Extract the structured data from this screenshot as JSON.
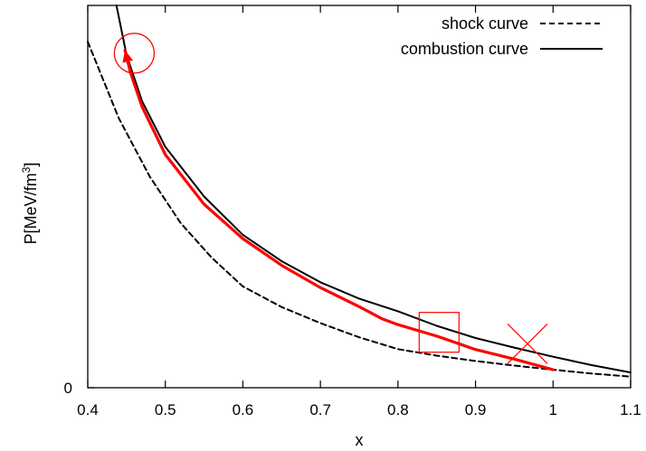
{
  "chart_data": {
    "type": "line",
    "title": "",
    "xlabel": "x",
    "ylabel_main": "P[MeV/fm",
    "ylabel_sup": "3",
    "ylabel_close": "]",
    "xlim": [
      0.4,
      1.1
    ],
    "ylim": [
      0,
      1
    ],
    "x_ticks": [
      "0.4",
      "0.5",
      "0.6",
      "0.7",
      "0.8",
      "0.9",
      "1",
      "1.1"
    ],
    "y_ticks": [
      "0"
    ],
    "grid": false,
    "legend_position": "top-right",
    "series": [
      {
        "name": "shock curve",
        "style": "dashed",
        "color": "#000000",
        "x": [
          0.4,
          0.44,
          0.48,
          0.52,
          0.56,
          0.6,
          0.65,
          0.7,
          0.75,
          0.8,
          0.85,
          0.9,
          0.95,
          1.0,
          1.05,
          1.1
        ],
        "y": [
          0.905,
          0.705,
          0.552,
          0.43,
          0.34,
          0.265,
          0.211,
          0.169,
          0.132,
          0.101,
          0.084,
          0.07,
          0.058,
          0.047,
          0.037,
          0.029
        ]
      },
      {
        "name": "combustion curve",
        "style": "solid",
        "color": "#000000",
        "x": [
          0.437,
          0.45,
          0.47,
          0.5,
          0.55,
          0.6,
          0.65,
          0.7,
          0.75,
          0.8,
          0.85,
          0.9,
          0.95,
          1.0,
          1.05,
          1.1
        ],
        "y": [
          1.0,
          0.87,
          0.75,
          0.63,
          0.5,
          0.4,
          0.331,
          0.276,
          0.233,
          0.2,
          0.162,
          0.13,
          0.105,
          0.081,
          0.059,
          0.04
        ]
      },
      {
        "name": "",
        "style": "solid-thick",
        "color": "#ff0000",
        "x": [
          1.0,
          0.95,
          0.9,
          0.85,
          0.8,
          0.78,
          0.75,
          0.7,
          0.65,
          0.6,
          0.55,
          0.5,
          0.47,
          0.455,
          0.448
        ],
        "y": [
          0.047,
          0.075,
          0.1,
          0.135,
          0.165,
          0.18,
          0.212,
          0.262,
          0.32,
          0.39,
          0.48,
          0.61,
          0.735,
          0.825,
          0.883
        ]
      }
    ],
    "annotations": [
      {
        "shape": "circle",
        "color": "#ff0000",
        "x": 0.46,
        "y": 0.875
      },
      {
        "shape": "square",
        "color": "#ff0000",
        "x": 0.853,
        "y": 0.145
      },
      {
        "shape": "cross",
        "color": "#ff0000",
        "x": 0.967,
        "y": 0.115
      }
    ]
  }
}
